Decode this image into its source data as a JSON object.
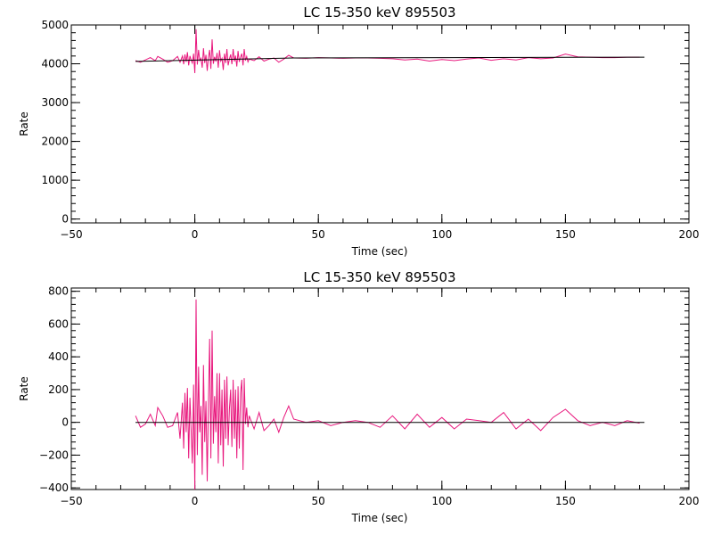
{
  "chart_data": [
    {
      "type": "line",
      "title": "LC 15-350 keV  895503",
      "xlabel": "Time (sec)",
      "ylabel": "Rate",
      "xlim": [
        -50,
        200
      ],
      "ylim": [
        -100,
        5000
      ],
      "x_ticks": [
        -50,
        0,
        50,
        100,
        150,
        200
      ],
      "y_ticks": [
        0,
        1000,
        2000,
        3000,
        4000,
        5000
      ],
      "grid": false,
      "series": [
        {
          "color": "#e8177d",
          "x": [
            -24,
            -22,
            -20,
            -18,
            -16,
            -15,
            -13,
            -11,
            -9,
            -7,
            -6,
            -5,
            -4.5,
            -4,
            -3.5,
            -3,
            -2.5,
            -2,
            -1.5,
            -1,
            -0.5,
            0,
            0.5,
            1,
            1.5,
            2,
            2.5,
            3,
            3.5,
            4,
            4.5,
            5,
            5.5,
            6,
            6.5,
            7,
            7.5,
            8,
            8.5,
            9,
            9.5,
            10,
            10.5,
            11,
            11.5,
            12,
            12.5,
            13,
            13.5,
            14,
            14.5,
            15,
            15.5,
            16,
            16.5,
            17,
            17.5,
            18,
            18.5,
            19,
            19.5,
            20,
            20.5,
            21,
            21.5,
            22,
            24,
            26,
            28,
            30,
            32,
            34,
            36,
            38,
            40,
            45,
            50,
            55,
            60,
            65,
            70,
            75,
            80,
            85,
            90,
            95,
            100,
            105,
            110,
            115,
            120,
            125,
            130,
            135,
            140,
            145,
            150,
            155,
            160,
            165,
            170,
            175,
            180
          ],
          "y": [
            4080,
            4040,
            4100,
            4160,
            4080,
            4190,
            4120,
            4040,
            4080,
            4190,
            4040,
            4200,
            3990,
            4240,
            4050,
            4300,
            3960,
            4200,
            4100,
            4020,
            4260,
            3760,
            4890,
            3980,
            4360,
            4080,
            4140,
            3900,
            4400,
            4020,
            4230,
            3820,
            4160,
            4360,
            3870,
            4630,
            4000,
            4180,
            4060,
            4280,
            3900,
            4350,
            4070,
            4140,
            3840,
            4260,
            4020,
            4380,
            3960,
            4120,
            4240,
            3990,
            4380,
            4060,
            4210,
            3930,
            4330,
            4050,
            4170,
            4260,
            3960,
            4380,
            4080,
            4190,
            4050,
            4120,
            4080,
            4180,
            4070,
            4120,
            4150,
            4040,
            4120,
            4220,
            4150,
            4140,
            4160,
            4150,
            4140,
            4150,
            4150,
            4140,
            4130,
            4100,
            4120,
            4070,
            4110,
            4080,
            4120,
            4150,
            4090,
            4130,
            4100,
            4160,
            4130,
            4150,
            4250,
            4180,
            4170,
            4160,
            4160,
            4170,
            4170
          ]
        },
        {
          "color": "#000000",
          "x": [
            -24,
            40,
            182
          ],
          "y": [
            4060,
            4150,
            4170
          ]
        }
      ]
    },
    {
      "type": "line",
      "title": "LC 15-350 keV  895503",
      "xlabel": "Time (sec)",
      "ylabel": "Rate",
      "xlim": [
        -50,
        200
      ],
      "ylim": [
        -410,
        820
      ],
      "x_ticks": [
        -50,
        0,
        50,
        100,
        150,
        200
      ],
      "y_ticks": [
        -400,
        -200,
        0,
        200,
        400,
        600,
        800
      ],
      "grid": false,
      "series": [
        {
          "color": "#e8177d",
          "x": [
            -24,
            -22,
            -20,
            -18,
            -16,
            -15,
            -13,
            -11,
            -9,
            -7,
            -6,
            -5,
            -4.5,
            -4,
            -3.5,
            -3,
            -2.5,
            -2,
            -1.5,
            -1,
            -0.5,
            0,
            0.5,
            1,
            1.5,
            2,
            2.5,
            3,
            3.5,
            4,
            4.5,
            5,
            5.5,
            6,
            6.5,
            7,
            7.5,
            8,
            8.5,
            9,
            9.5,
            10,
            10.5,
            11,
            11.5,
            12,
            12.5,
            13,
            13.5,
            14,
            14.5,
            15,
            15.5,
            16,
            16.5,
            17,
            17.5,
            18,
            18.5,
            19,
            19.5,
            20,
            20.5,
            21,
            21.5,
            22,
            24,
            26,
            28,
            30,
            32,
            34,
            36,
            38,
            40,
            45,
            50,
            55,
            60,
            65,
            70,
            75,
            80,
            85,
            90,
            95,
            100,
            105,
            110,
            115,
            120,
            125,
            130,
            135,
            140,
            145,
            150,
            155,
            160,
            165,
            170,
            175,
            180
          ],
          "y": [
            40,
            -30,
            -10,
            50,
            -20,
            90,
            40,
            -30,
            -20,
            60,
            -100,
            120,
            -160,
            180,
            -60,
            210,
            -220,
            150,
            -40,
            -250,
            230,
            -410,
            750,
            -200,
            340,
            -60,
            100,
            -320,
            350,
            -120,
            130,
            -360,
            100,
            510,
            -220,
            560,
            -130,
            160,
            -60,
            300,
            -250,
            300,
            -140,
            200,
            -270,
            260,
            -100,
            280,
            -140,
            80,
            200,
            -150,
            260,
            -100,
            200,
            -220,
            220,
            -160,
            180,
            260,
            -290,
            270,
            -10,
            90,
            -30,
            40,
            -40,
            60,
            -50,
            -20,
            20,
            -60,
            30,
            100,
            20,
            0,
            10,
            -20,
            0,
            10,
            0,
            -30,
            40,
            -40,
            50,
            -30,
            30,
            -40,
            20,
            10,
            0,
            60,
            -40,
            20,
            -50,
            30,
            80,
            10,
            -20,
            0,
            -20,
            10,
            -5
          ]
        },
        {
          "color": "#000000",
          "x": [
            -24,
            182
          ],
          "y": [
            0,
            0
          ]
        }
      ]
    }
  ]
}
